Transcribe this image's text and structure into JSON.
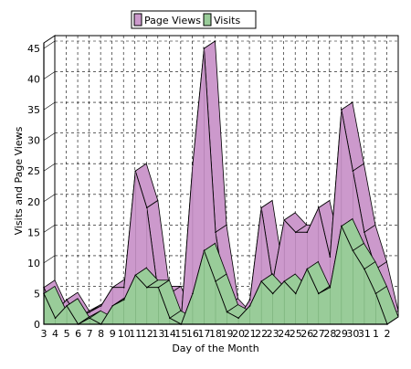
{
  "chart_data": {
    "type": "area",
    "title": "",
    "xlabel": "Day of the Month",
    "ylabel": "Visits and Page Views",
    "ylim": [
      0,
      45
    ],
    "yticks": [
      0,
      5,
      10,
      15,
      20,
      25,
      30,
      35,
      40,
      45
    ],
    "grid": true,
    "legend_position": "top",
    "categories": [
      "3",
      "4",
      "5",
      "6",
      "7",
      "8",
      "9",
      "10",
      "11",
      "12",
      "13",
      "14",
      "15",
      "16",
      "17",
      "18",
      "19",
      "20",
      "21",
      "22",
      "23",
      "24",
      "25",
      "26",
      "27",
      "28",
      "29",
      "30",
      "31",
      "1",
      "2"
    ],
    "series": [
      {
        "name": "Page Views",
        "color": "#cc99cc",
        "values": [
          6,
          2,
          4,
          1,
          2,
          3,
          6,
          6,
          25,
          19,
          5,
          5,
          1,
          26,
          45,
          15,
          3,
          1,
          4,
          19,
          7,
          17,
          15,
          15,
          19,
          11,
          35,
          25,
          15,
          9,
          1
        ]
      },
      {
        "name": "Visits",
        "color": "#99cc99",
        "values": [
          5,
          1,
          3,
          0,
          1,
          0,
          3,
          4,
          8,
          6,
          6,
          1,
          0,
          5,
          12,
          7,
          2,
          1,
          3,
          7,
          5,
          7,
          5,
          9,
          5,
          6,
          16,
          12,
          9,
          5,
          0
        ]
      }
    ]
  }
}
